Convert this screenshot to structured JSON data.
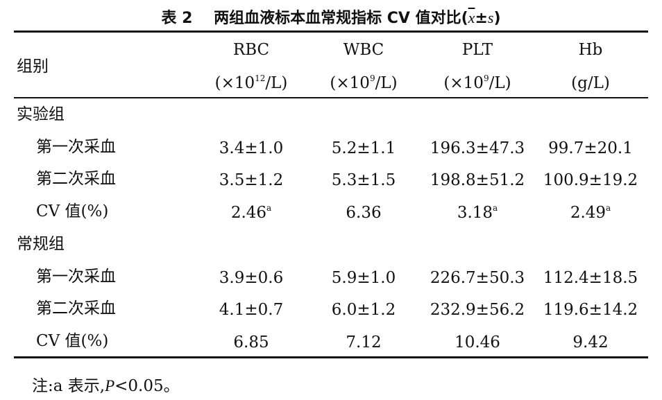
{
  "caption": {
    "label": "表 2",
    "title": "两组血液标本血常规指标 CV 值对比",
    "open": "(",
    "xbar": "x",
    "pm": "±",
    "s": "s",
    "close": ")"
  },
  "header": {
    "group_label": "组别",
    "columns": [
      {
        "name": "RBC",
        "unit_pre": "(×10",
        "unit_sup": "12",
        "unit_post": "/L)"
      },
      {
        "name": "WBC",
        "unit_pre": "(×10",
        "unit_sup": "9",
        "unit_post": "/L)"
      },
      {
        "name": "PLT",
        "unit_pre": "(×10",
        "unit_sup": "9",
        "unit_post": "/L)"
      },
      {
        "name": "Hb",
        "unit_pre": "(g/L)",
        "unit_sup": "",
        "unit_post": ""
      }
    ]
  },
  "groups": [
    {
      "name": "实验组",
      "rows": [
        {
          "label": "第一次采血",
          "cells": [
            {
              "v": "3.4±1.0",
              "sup": ""
            },
            {
              "v": "5.2±1.1",
              "sup": ""
            },
            {
              "v": "196.3±47.3",
              "sup": ""
            },
            {
              "v": "99.7±20.1",
              "sup": ""
            }
          ]
        },
        {
          "label": "第二次采血",
          "cells": [
            {
              "v": "3.5±1.2",
              "sup": ""
            },
            {
              "v": "5.3±1.5",
              "sup": ""
            },
            {
              "v": "198.8±51.2",
              "sup": ""
            },
            {
              "v": "100.9±19.2",
              "sup": ""
            }
          ]
        },
        {
          "label": "CV 值(%)",
          "cells": [
            {
              "v": "2.46",
              "sup": "a"
            },
            {
              "v": "6.36",
              "sup": ""
            },
            {
              "v": "3.18",
              "sup": "a"
            },
            {
              "v": "2.49",
              "sup": "a"
            }
          ]
        }
      ]
    },
    {
      "name": "常规组",
      "rows": [
        {
          "label": "第一次采血",
          "cells": [
            {
              "v": "3.9±0.6",
              "sup": ""
            },
            {
              "v": "5.9±1.0",
              "sup": ""
            },
            {
              "v": "226.7±50.3",
              "sup": ""
            },
            {
              "v": "112.4±18.5",
              "sup": ""
            }
          ]
        },
        {
          "label": "第二次采血",
          "cells": [
            {
              "v": "4.1±0.7",
              "sup": ""
            },
            {
              "v": "6.0±1.2",
              "sup": ""
            },
            {
              "v": "232.9±56.2",
              "sup": ""
            },
            {
              "v": "119.6±14.2",
              "sup": ""
            }
          ]
        },
        {
          "label": "CV 值(%)",
          "cells": [
            {
              "v": "6.85",
              "sup": ""
            },
            {
              "v": "7.12",
              "sup": ""
            },
            {
              "v": "10.46",
              "sup": ""
            },
            {
              "v": "9.42",
              "sup": ""
            }
          ]
        }
      ]
    }
  ],
  "note": {
    "prefix": "注:a 表示,",
    "p": "P",
    "suffix": "<0.05。"
  }
}
